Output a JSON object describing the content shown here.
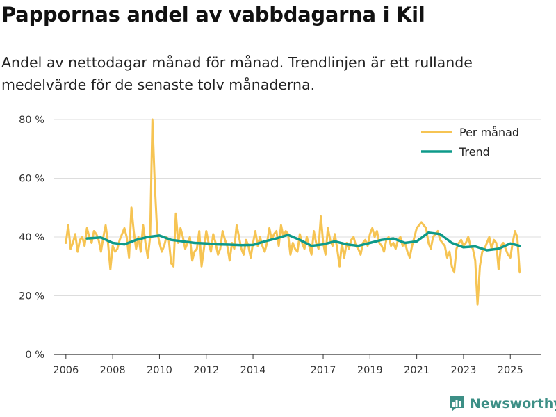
{
  "title": "Pappornas andel av vabbdagarna i Kil",
  "subtitle": "Andel av nettodagar månad för månad. Trendlinjen är ett rullande medelvärde för de senaste tolv månaderna.",
  "brand": {
    "name": "Newsworthy",
    "color": "#3d8f86"
  },
  "chart_data": {
    "type": "line",
    "title": "Pappornas andel av vabbdagarna i Kil",
    "xlabel": "",
    "ylabel": "",
    "xlim": [
      2005.5,
      2026.3
    ],
    "ylim": [
      0,
      80
    ],
    "grid": true,
    "legend_position": "top-right",
    "x_ticks": [
      2006,
      2008,
      2010,
      2012,
      2014,
      2017,
      2019,
      2021,
      2023,
      2025
    ],
    "x_tick_labels": [
      "2006",
      "2008",
      "2010",
      "2012",
      "2014",
      "2017",
      "2019",
      "2021",
      "2023",
      "2025"
    ],
    "y_ticks": [
      0,
      20,
      40,
      60,
      80
    ],
    "y_tick_labels": [
      "0 %",
      "20 %",
      "40 %",
      "60 %",
      "80 %"
    ],
    "series": [
      {
        "name": "Per månad",
        "color": "#f6c453",
        "x": [
          2006.0,
          2006.1,
          2006.2,
          2006.3,
          2006.4,
          2006.5,
          2006.6,
          2006.7,
          2006.8,
          2006.9,
          2007.0,
          2007.1,
          2007.2,
          2007.3,
          2007.4,
          2007.5,
          2007.6,
          2007.7,
          2007.8,
          2007.9,
          2008.0,
          2008.1,
          2008.2,
          2008.3,
          2008.4,
          2008.5,
          2008.6,
          2008.7,
          2008.8,
          2008.9,
          2009.0,
          2009.1,
          2009.2,
          2009.3,
          2009.4,
          2009.5,
          2009.6,
          2009.7,
          2009.8,
          2009.9,
          2010.0,
          2010.1,
          2010.2,
          2010.3,
          2010.4,
          2010.5,
          2010.6,
          2010.7,
          2010.8,
          2010.9,
          2011.0,
          2011.1,
          2011.2,
          2011.3,
          2011.4,
          2011.5,
          2011.6,
          2011.7,
          2011.8,
          2011.9,
          2012.0,
          2012.1,
          2012.2,
          2012.3,
          2012.4,
          2012.5,
          2012.6,
          2012.7,
          2012.8,
          2012.9,
          2013.0,
          2013.1,
          2013.2,
          2013.3,
          2013.4,
          2013.5,
          2013.6,
          2013.7,
          2013.8,
          2013.9,
          2014.0,
          2014.1,
          2014.2,
          2014.3,
          2014.4,
          2014.5,
          2014.6,
          2014.7,
          2014.8,
          2014.9,
          2015.0,
          2015.1,
          2015.2,
          2015.3,
          2015.4,
          2015.5,
          2015.6,
          2015.7,
          2015.8,
          2015.9,
          2016.0,
          2016.1,
          2016.2,
          2016.3,
          2016.4,
          2016.5,
          2016.6,
          2016.7,
          2016.8,
          2016.9,
          2017.0,
          2017.1,
          2017.2,
          2017.3,
          2017.4,
          2017.5,
          2017.6,
          2017.7,
          2017.8,
          2017.9,
          2018.0,
          2018.1,
          2018.2,
          2018.3,
          2018.4,
          2018.5,
          2018.6,
          2018.7,
          2018.8,
          2018.9,
          2019.0,
          2019.1,
          2019.2,
          2019.3,
          2019.4,
          2019.5,
          2019.6,
          2019.7,
          2019.8,
          2019.9,
          2020.0,
          2020.1,
          2020.2,
          2020.3,
          2020.4,
          2020.5,
          2020.6,
          2020.7,
          2020.8,
          2020.9,
          2021.0,
          2021.1,
          2021.2,
          2021.3,
          2021.4,
          2021.5,
          2021.6,
          2021.7,
          2021.8,
          2021.9,
          2022.0,
          2022.1,
          2022.2,
          2022.3,
          2022.4,
          2022.5,
          2022.6,
          2022.7,
          2022.8,
          2022.9,
          2023.0,
          2023.1,
          2023.2,
          2023.3,
          2023.4,
          2023.5,
          2023.6,
          2023.7,
          2023.8,
          2023.9,
          2024.0,
          2024.1,
          2024.2,
          2024.3,
          2024.4,
          2024.5,
          2024.6,
          2024.7,
          2024.8,
          2024.9,
          2025.0,
          2025.1,
          2025.2,
          2025.3,
          2025.4
        ],
        "values": [
          38,
          44,
          36,
          38,
          41,
          35,
          39,
          40,
          37,
          43,
          40,
          38,
          42,
          41,
          39,
          35,
          40,
          44,
          38,
          29,
          37,
          35,
          36,
          39,
          41,
          43,
          40,
          33,
          50,
          42,
          36,
          40,
          35,
          44,
          38,
          33,
          40,
          80,
          58,
          42,
          38,
          35,
          37,
          40,
          39,
          31,
          30,
          48,
          38,
          43,
          40,
          36,
          38,
          40,
          32,
          35,
          36,
          42,
          30,
          36,
          42,
          38,
          35,
          41,
          38,
          34,
          36,
          42,
          39,
          37,
          32,
          38,
          36,
          44,
          40,
          36,
          34,
          39,
          37,
          33,
          38,
          42,
          37,
          40,
          37,
          35,
          38,
          43,
          39,
          41,
          42,
          37,
          44,
          40,
          42,
          41,
          34,
          38,
          36,
          35,
          41,
          38,
          36,
          40,
          37,
          34,
          42,
          38,
          36,
          47,
          38,
          34,
          43,
          39,
          37,
          41,
          36,
          30,
          38,
          33,
          38,
          36,
          39,
          40,
          37,
          36,
          34,
          38,
          39,
          37,
          41,
          43,
          40,
          42,
          38,
          37,
          35,
          39,
          40,
          37,
          38,
          36,
          39,
          40,
          37,
          38,
          35,
          33,
          37,
          40,
          43,
          44,
          45,
          44,
          43,
          38,
          36,
          40,
          41,
          42,
          39,
          38,
          37,
          33,
          35,
          30,
          28,
          36,
          38,
          39,
          37,
          38,
          40,
          37,
          36,
          32,
          17,
          30,
          35,
          36,
          38,
          40,
          36,
          39,
          38,
          29,
          37,
          38,
          36,
          34,
          33,
          38,
          42,
          40,
          28
        ]
      },
      {
        "name": "Trend",
        "color": "#0e9a8a",
        "x": [
          2006.9,
          2007.5,
          2008.0,
          2008.5,
          2009.0,
          2009.5,
          2010.0,
          2010.5,
          2011.0,
          2011.5,
          2012.0,
          2012.5,
          2013.0,
          2013.5,
          2014.0,
          2014.5,
          2015.0,
          2015.5,
          2016.0,
          2016.5,
          2017.0,
          2017.5,
          2018.0,
          2018.5,
          2019.0,
          2019.5,
          2020.0,
          2020.5,
          2021.0,
          2021.5,
          2022.0,
          2022.5,
          2023.0,
          2023.5,
          2024.0,
          2024.5,
          2025.0,
          2025.4
        ],
        "values": [
          39.5,
          39.8,
          38.0,
          37.5,
          39.0,
          40.0,
          40.5,
          39.0,
          38.5,
          38.0,
          37.8,
          37.5,
          37.4,
          37.2,
          37.3,
          38.5,
          39.5,
          40.7,
          39.0,
          37.0,
          37.5,
          38.5,
          37.5,
          37.0,
          38.0,
          39.0,
          39.5,
          38.0,
          38.5,
          41.5,
          41.0,
          38.0,
          36.5,
          36.8,
          35.5,
          36.0,
          37.8,
          37.0
        ]
      }
    ]
  }
}
